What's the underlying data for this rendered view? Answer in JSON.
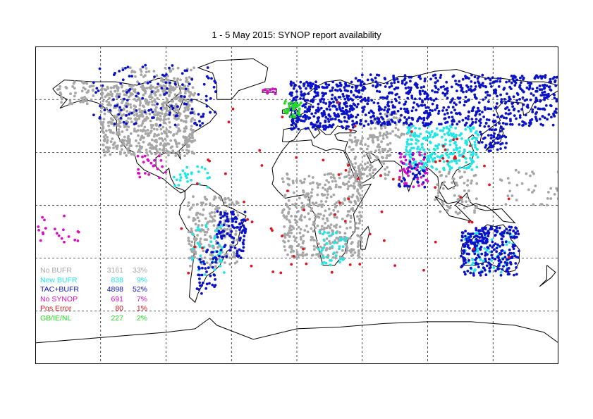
{
  "title": "1 - 5 May 2015: SYNOP report availability",
  "map": {
    "type": "world-station-map",
    "grid": true,
    "grid_longitudes": [
      -180,
      -135,
      -90,
      -45,
      0,
      45,
      90,
      135,
      180
    ],
    "grid_latitudes": [
      -90,
      -60,
      -30,
      0,
      30,
      60,
      90
    ],
    "land_outline_color": "#000000",
    "background_color": "#ffffff"
  },
  "legend": [
    {
      "key": "no_bufr",
      "name": "No BUFR",
      "count": "3161",
      "pct": "33%",
      "color": "#a6a6a6"
    },
    {
      "key": "new_bufr",
      "name": "New BUFR",
      "count": "838",
      "pct": "9%",
      "color": "#22e6e6"
    },
    {
      "key": "tac_bufr",
      "name": "TAC+BUFR",
      "count": "4898",
      "pct": "52%",
      "color": "#0a12c8"
    },
    {
      "key": "no_synop",
      "name": "No SYNOP",
      "count": "691",
      "pct": "7%",
      "color": "#d80fc4"
    },
    {
      "key": "pos_error",
      "name": "Pos Error",
      "count": "80",
      "pct": "1%",
      "color": "#e0141e"
    },
    {
      "key": "gb_ie_nl",
      "name": "GB/IE/NL",
      "count": "227",
      "pct": "2%",
      "color": "#22dc22"
    }
  ],
  "station_regions": [
    {
      "category": "no_bufr",
      "area": "North America",
      "lon": [
        -135,
        -70
      ],
      "lat": [
        28,
        68
      ],
      "density": 0.9
    },
    {
      "category": "no_bufr",
      "area": "Alaska",
      "lon": [
        -165,
        -140
      ],
      "lat": [
        56,
        70
      ],
      "density": 0.5
    },
    {
      "category": "no_bufr",
      "area": "Canadian Arctic",
      "lon": [
        -120,
        -70
      ],
      "lat": [
        60,
        78
      ],
      "density": 0.35
    },
    {
      "category": "no_bufr",
      "area": "South America",
      "lon": [
        -75,
        -40
      ],
      "lat": [
        -35,
        5
      ],
      "density": 0.55
    },
    {
      "category": "no_bufr",
      "area": "Africa",
      "lon": [
        -10,
        45
      ],
      "lat": [
        -30,
        18
      ],
      "density": 0.55
    },
    {
      "category": "no_bufr",
      "area": "Middle East",
      "lon": [
        35,
        65
      ],
      "lat": [
        15,
        40
      ],
      "density": 0.6
    },
    {
      "category": "no_bufr",
      "area": "Central Asia",
      "lon": [
        50,
        80
      ],
      "lat": [
        38,
        52
      ],
      "density": 0.5
    },
    {
      "category": "no_bufr",
      "area": "Southeast Asia",
      "lon": [
        95,
        125
      ],
      "lat": [
        -5,
        20
      ],
      "density": 0.3
    },
    {
      "category": "no_bufr",
      "area": "Pacific Islands",
      "lon": [
        140,
        180
      ],
      "lat": [
        0,
        20
      ],
      "density": 0.15
    },
    {
      "category": "new_bufr",
      "area": "China",
      "lon": [
        75,
        125
      ],
      "lat": [
        20,
        45
      ],
      "density": 0.75
    },
    {
      "category": "new_bufr",
      "area": "Australia",
      "lon": [
        115,
        150
      ],
      "lat": [
        -38,
        -15
      ],
      "density": 0.3
    },
    {
      "category": "new_bufr",
      "area": "South America",
      "lon": [
        -72,
        -50
      ],
      "lat": [
        -40,
        -10
      ],
      "density": 0.25
    },
    {
      "category": "new_bufr",
      "area": "Caribbean",
      "lon": [
        -85,
        -60
      ],
      "lat": [
        10,
        22
      ],
      "density": 0.3
    },
    {
      "category": "new_bufr",
      "area": "Southern Africa",
      "lon": [
        15,
        35
      ],
      "lat": [
        -35,
        -15
      ],
      "density": 0.35
    },
    {
      "category": "tac_bufr",
      "area": "Europe",
      "lon": [
        -5,
        40
      ],
      "lat": [
        43,
        70
      ],
      "density": 1.0
    },
    {
      "category": "tac_bufr",
      "area": "Russia",
      "lon": [
        40,
        180
      ],
      "lat": [
        45,
        74
      ],
      "density": 0.6
    },
    {
      "category": "tac_bufr",
      "area": "Australia",
      "lon": [
        113,
        153
      ],
      "lat": [
        -40,
        -12
      ],
      "density": 0.85
    },
    {
      "category": "tac_bufr",
      "area": "Brazil",
      "lon": [
        -55,
        -35
      ],
      "lat": [
        -30,
        -3
      ],
      "density": 0.65
    },
    {
      "category": "tac_bufr",
      "area": "Argentina",
      "lon": [
        -70,
        -55
      ],
      "lat": [
        -50,
        -25
      ],
      "density": 0.4
    },
    {
      "category": "tac_bufr",
      "area": "Japan / Korea",
      "lon": [
        125,
        145
      ],
      "lat": [
        30,
        45
      ],
      "density": 0.6
    },
    {
      "category": "tac_bufr",
      "area": "India",
      "lon": [
        70,
        88
      ],
      "lat": [
        10,
        30
      ],
      "density": 0.4
    },
    {
      "category": "tac_bufr",
      "area": "Canada",
      "lon": [
        -140,
        -55
      ],
      "lat": [
        45,
        80
      ],
      "density": 0.15
    },
    {
      "category": "no_synop",
      "area": "India",
      "lon": [
        70,
        90
      ],
      "lat": [
        10,
        30
      ],
      "density": 0.35
    },
    {
      "category": "no_synop",
      "area": "Mexico",
      "lon": [
        -110,
        -90
      ],
      "lat": [
        15,
        28
      ],
      "density": 0.3
    },
    {
      "category": "no_synop",
      "area": "Iceland",
      "lon": [
        -24,
        -14
      ],
      "lat": [
        63,
        66
      ],
      "density": 1.0
    },
    {
      "category": "no_synop",
      "area": "Pacific Islands",
      "lon": [
        -178,
        -150
      ],
      "lat": [
        -22,
        -5
      ],
      "density": 0.15
    },
    {
      "category": "pos_error",
      "area": "China",
      "lon": [
        100,
        120
      ],
      "lat": [
        25,
        40
      ],
      "density": 0.12
    },
    {
      "category": "pos_error",
      "area": "Scattered",
      "lon": [
        -80,
        150
      ],
      "lat": [
        -40,
        60
      ],
      "density": 0.01
    },
    {
      "category": "gb_ie_nl",
      "area": "British Isles",
      "lon": [
        -10,
        3
      ],
      "lat": [
        50,
        59
      ],
      "density": 1.0
    }
  ]
}
